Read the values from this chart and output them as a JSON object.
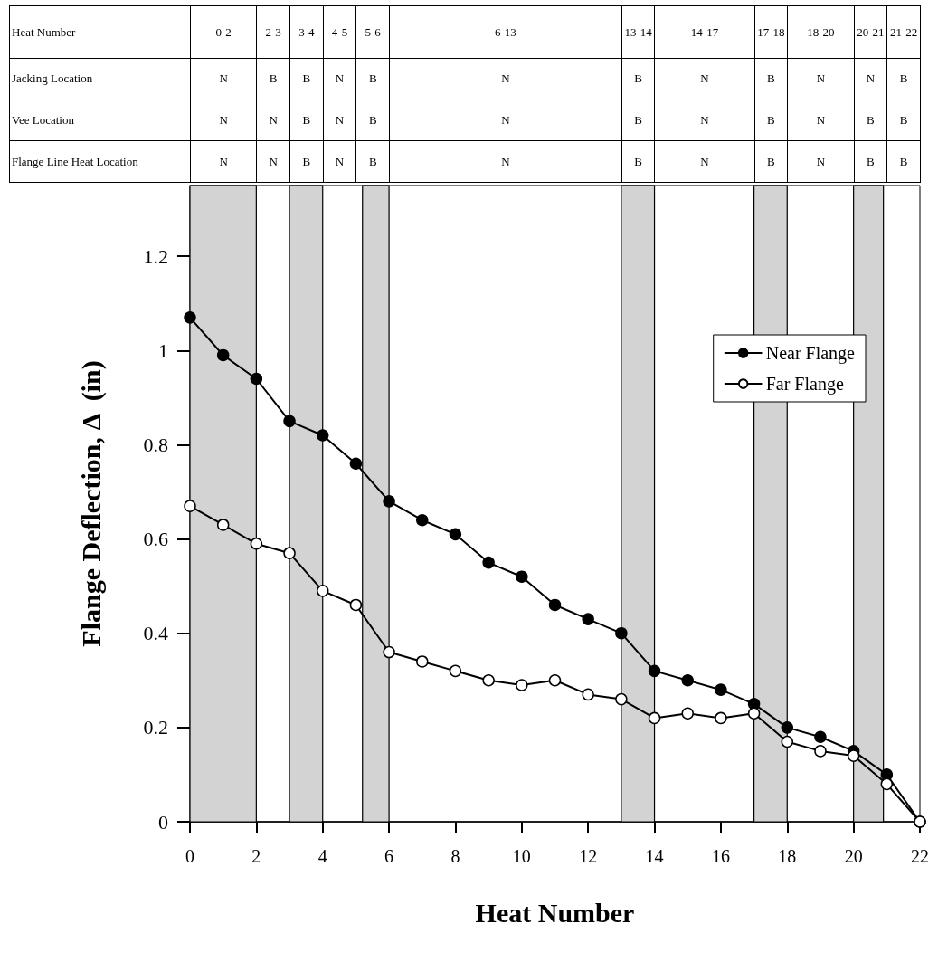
{
  "chart_data": [
    {
      "type": "heatmap",
      "xlabel": "Heat Number",
      "categories": [
        "0-2",
        "2-3",
        "3-4",
        "4-5",
        "5-6",
        "6-13",
        "13-14",
        "14-17",
        "17-18",
        "18-20",
        "20-21",
        "21-22"
      ],
      "y_categories": [
        "Jacking Location",
        "Vee Location",
        "Flange Line Heat Location"
      ],
      "cells": [
        [
          null,
          null,
          null,
          null,
          null,
          null,
          null,
          null,
          null,
          null,
          null,
          null
        ],
        [
          null,
          null,
          null,
          null,
          null,
          null,
          null,
          null,
          null,
          null,
          null,
          null
        ],
        [
          null,
          null,
          null,
          null,
          null,
          null,
          null,
          null,
          null,
          null,
          null,
          null
        ]
      ],
      "cell_labels": [
        [
          "N",
          "B",
          "B",
          "N",
          "B",
          "N",
          "B",
          "N",
          "B",
          "N",
          "N",
          "B"
        ],
        [
          "N",
          "N",
          "B",
          "N",
          "B",
          "N",
          "B",
          "N",
          "B",
          "N",
          "B",
          "B"
        ],
        [
          "N",
          "N",
          "B",
          "N",
          "B",
          "N",
          "B",
          "N",
          "B",
          "N",
          "B",
          "B"
        ]
      ]
    },
    {
      "type": "line",
      "xlabel": "Heat Number",
      "ylabel": "Flange Deflection, Δ  (in)",
      "xlim": [
        0,
        22
      ],
      "xticks": [
        0,
        2,
        4,
        6,
        8,
        10,
        12,
        14,
        16,
        18,
        20,
        22
      ],
      "ylim": [
        0,
        1.35
      ],
      "yticks": [
        0,
        0.2,
        0.4,
        0.6,
        0.8,
        1,
        1.2
      ],
      "x": [
        0,
        1,
        2,
        3,
        4,
        5,
        6,
        7,
        8,
        9,
        10,
        11,
        12,
        13,
        14,
        15,
        16,
        17,
        18,
        19,
        20,
        21,
        22
      ],
      "series": [
        {
          "name": "Near Flange",
          "color": "#000000",
          "values": [
            1.07,
            0.99,
            0.94,
            0.85,
            0.82,
            0.76,
            0.68,
            0.64,
            0.61,
            0.55,
            0.52,
            0.46,
            0.43,
            0.4,
            0.32,
            0.3,
            0.28,
            0.25,
            0.2,
            0.18,
            0.15,
            0.1,
            0
          ]
        },
        {
          "name": "Far Flange",
          "color": "#000000",
          "values": [
            0.67,
            0.63,
            0.59,
            0.57,
            0.49,
            0.46,
            0.36,
            0.34,
            0.32,
            0.3,
            0.29,
            0.3,
            0.27,
            0.26,
            0.22,
            0.23,
            0.22,
            0.23,
            0.17,
            0.15,
            0.14,
            0.08,
            0
          ]
        }
      ],
      "bands": [
        {
          "axis": "x",
          "from": 0,
          "to": 2,
          "color": "#d3d3d3"
        },
        {
          "axis": "x",
          "from": 3,
          "to": 4,
          "color": "#d3d3d3"
        },
        {
          "axis": "x",
          "from": 5.2,
          "to": 6,
          "color": "#d3d3d3"
        },
        {
          "axis": "x",
          "from": 13,
          "to": 14,
          "color": "#d3d3d3"
        },
        {
          "axis": "x",
          "from": 17,
          "to": 18,
          "color": "#d3d3d3"
        },
        {
          "axis": "x",
          "from": 20,
          "to": 20.9,
          "color": "#d3d3d3"
        }
      ],
      "marker": "circle",
      "line_style": "solid",
      "legend": "right",
      "grid": false
    }
  ]
}
